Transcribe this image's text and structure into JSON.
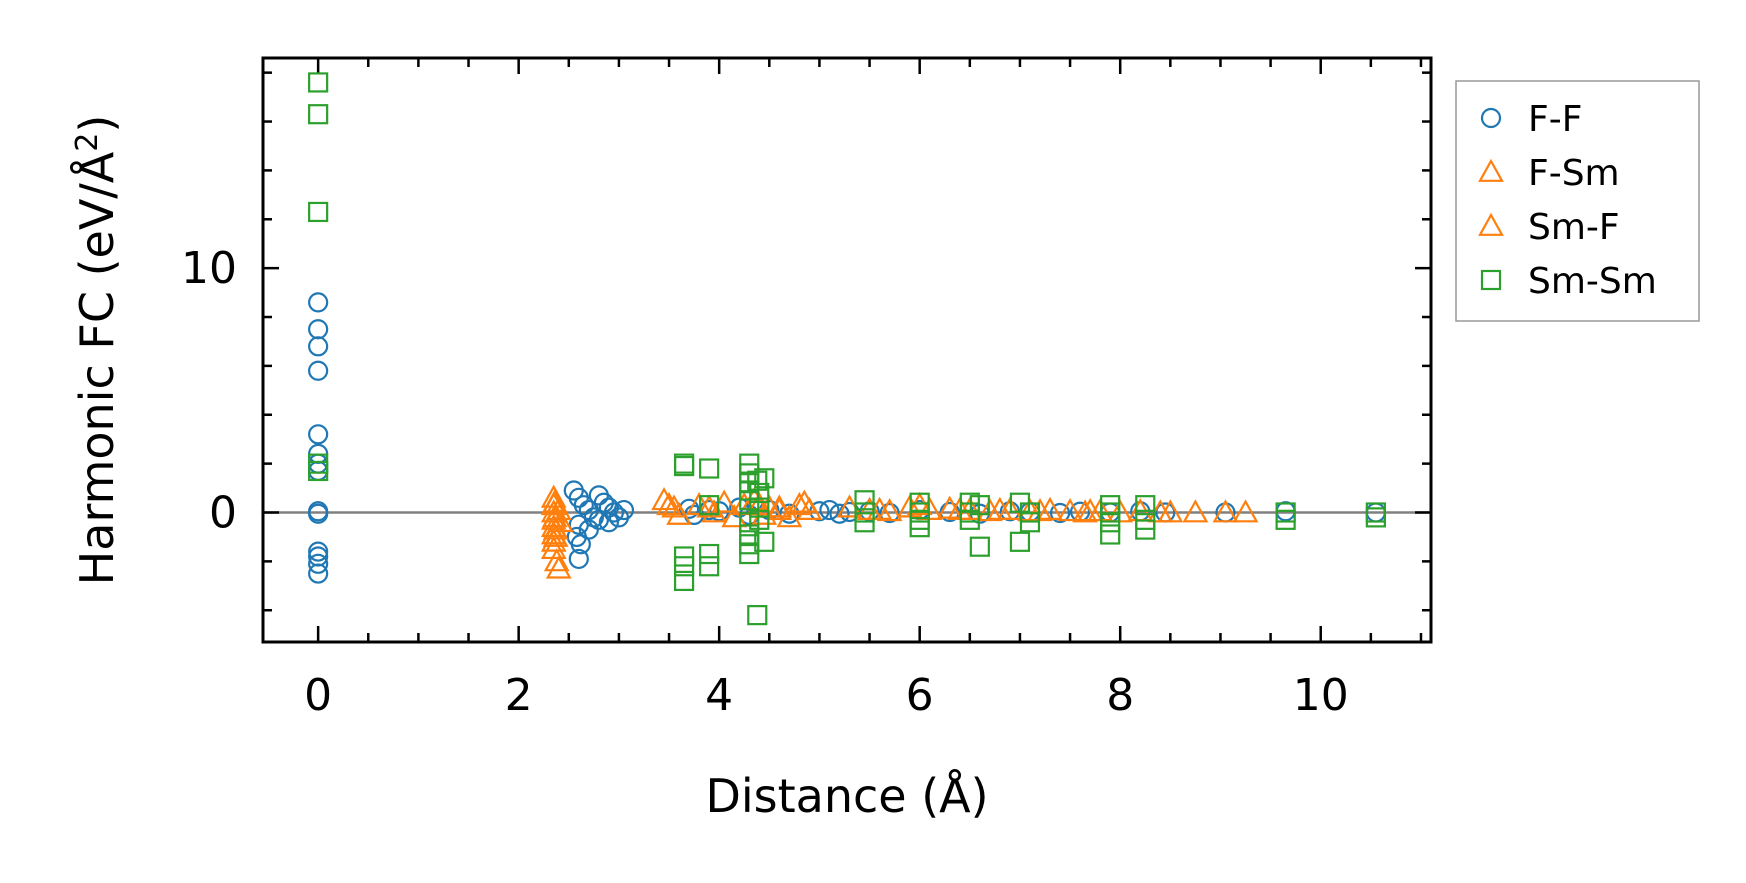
{
  "chart_data": {
    "type": "scatter",
    "xlabel": "Distance (Å)",
    "ylabel_main": "Harmonic FC (eV/Å",
    "ylabel_sup": "2",
    "ylabel_close": ")",
    "xlim": [
      -0.55,
      11.1
    ],
    "ylim": [
      -5.3,
      18.6
    ],
    "xticks_major": [
      0,
      2,
      4,
      6,
      8,
      10
    ],
    "xtick_labels": [
      "0",
      "2",
      "4",
      "6",
      "8",
      "10"
    ],
    "yticks_major": [
      0,
      10
    ],
    "ytick_labels": [
      "0",
      "10"
    ],
    "reference_line_y": 0,
    "grid": false,
    "legend_position": "outside-right-top",
    "series": [
      {
        "name": "F-F",
        "marker": "circle",
        "color": "#1f77b4",
        "points": [
          [
            0,
            8.6
          ],
          [
            0,
            7.5
          ],
          [
            0,
            6.8
          ],
          [
            0,
            5.8
          ],
          [
            0,
            3.2
          ],
          [
            0,
            2.4
          ],
          [
            0,
            2.0
          ],
          [
            0,
            1.7
          ],
          [
            0,
            0.05
          ],
          [
            0,
            -0.05
          ],
          [
            0,
            -1.6
          ],
          [
            0,
            -1.8
          ],
          [
            0,
            -2.1
          ],
          [
            0,
            -2.5
          ],
          [
            2.55,
            0.9
          ],
          [
            2.6,
            0.6
          ],
          [
            2.65,
            0.3
          ],
          [
            2.7,
            0.1
          ],
          [
            2.75,
            -0.2
          ],
          [
            2.6,
            -0.5
          ],
          [
            2.7,
            -0.7
          ],
          [
            2.8,
            -0.3
          ],
          [
            2.85,
            0.4
          ],
          [
            2.9,
            0.2
          ],
          [
            2.95,
            0.0
          ],
          [
            3.0,
            -0.2
          ],
          [
            3.05,
            0.1
          ],
          [
            2.58,
            -1.0
          ],
          [
            2.62,
            -1.3
          ],
          [
            2.6,
            -1.9
          ],
          [
            2.9,
            -0.4
          ],
          [
            2.8,
            0.7
          ],
          [
            3.7,
            0.15
          ],
          [
            3.75,
            -0.1
          ],
          [
            3.9,
            0.1
          ],
          [
            4.0,
            0.05
          ],
          [
            4.2,
            0.2
          ],
          [
            4.3,
            -0.1
          ],
          [
            4.5,
            0.1
          ],
          [
            4.7,
            -0.05
          ],
          [
            5.0,
            0.05
          ],
          [
            5.1,
            0.1
          ],
          [
            5.2,
            -0.05
          ],
          [
            5.3,
            0.02
          ],
          [
            5.5,
            0.05
          ],
          [
            5.7,
            -0.02
          ],
          [
            6.0,
            0.1
          ],
          [
            6.3,
            0.02
          ],
          [
            6.6,
            -0.05
          ],
          [
            6.9,
            0.05
          ],
          [
            7.1,
            0.02
          ],
          [
            7.4,
            -0.02
          ],
          [
            7.6,
            0.03
          ],
          [
            7.9,
            0.0
          ],
          [
            8.2,
            0.05
          ],
          [
            8.45,
            0.0
          ],
          [
            9.05,
            0.0
          ],
          [
            9.65,
            0.05
          ],
          [
            10.55,
            0.0
          ]
        ]
      },
      {
        "name": "F-Sm",
        "marker": "triangle",
        "color": "#ff7f0e",
        "points": [
          [
            2.35,
            0.6
          ],
          [
            2.35,
            0.3
          ],
          [
            2.35,
            0.0
          ],
          [
            2.35,
            -0.3
          ],
          [
            2.35,
            -0.6
          ],
          [
            2.35,
            -0.9
          ],
          [
            2.35,
            -1.2
          ],
          [
            2.35,
            -1.5
          ],
          [
            2.38,
            -2.0
          ],
          [
            2.4,
            -2.3
          ],
          [
            2.4,
            0.1
          ],
          [
            2.42,
            -0.4
          ],
          [
            3.45,
            0.5
          ],
          [
            3.55,
            0.2
          ],
          [
            3.6,
            -0.1
          ],
          [
            3.8,
            0.3
          ],
          [
            3.95,
            0.0
          ],
          [
            4.05,
            0.4
          ],
          [
            4.15,
            -0.2
          ],
          [
            4.25,
            0.3
          ],
          [
            4.35,
            0.5
          ],
          [
            4.45,
            -0.1
          ],
          [
            4.5,
            0.2
          ],
          [
            4.6,
            0.1
          ],
          [
            4.7,
            -0.2
          ],
          [
            4.8,
            0.3
          ],
          [
            4.9,
            0.1
          ],
          [
            5.3,
            0.2
          ],
          [
            5.5,
            0.1
          ],
          [
            5.7,
            0.05
          ],
          [
            5.9,
            0.2
          ],
          [
            6.1,
            0.1
          ],
          [
            6.3,
            0.15
          ],
          [
            6.5,
            0.1
          ],
          [
            6.7,
            0.05
          ],
          [
            6.9,
            0.1
          ],
          [
            7.1,
            0.05
          ],
          [
            7.3,
            0.1
          ],
          [
            7.5,
            0.05
          ],
          [
            7.65,
            0.0
          ],
          [
            7.8,
            0.05
          ],
          [
            8.0,
            0.0
          ],
          [
            8.2,
            0.05
          ],
          [
            8.5,
            0.0
          ],
          [
            8.75,
            0.0
          ],
          [
            9.05,
            0.0
          ],
          [
            9.25,
            0.0
          ]
        ]
      },
      {
        "name": "Sm-F",
        "marker": "triangle",
        "color": "#ff7f0e",
        "points": [
          [
            2.36,
            0.4
          ],
          [
            2.36,
            -0.2
          ],
          [
            2.37,
            -0.7
          ],
          [
            2.37,
            -1.0
          ],
          [
            3.5,
            0.3
          ],
          [
            3.9,
            0.2
          ],
          [
            4.4,
            0.3
          ],
          [
            4.6,
            0.2
          ],
          [
            4.85,
            0.4
          ],
          [
            5.6,
            0.1
          ],
          [
            6.0,
            0.3
          ],
          [
            6.4,
            0.1
          ],
          [
            6.8,
            0.1
          ],
          [
            7.2,
            0.05
          ],
          [
            7.7,
            0.05
          ],
          [
            8.4,
            0.0
          ]
        ]
      },
      {
        "name": "Sm-Sm",
        "marker": "square",
        "color": "#2ca02c",
        "points": [
          [
            0,
            17.6
          ],
          [
            0,
            16.3
          ],
          [
            0,
            12.3
          ],
          [
            0,
            2.0
          ],
          [
            0,
            1.7
          ],
          [
            3.65,
            1.9
          ],
          [
            3.65,
            2.0
          ],
          [
            3.65,
            -1.8
          ],
          [
            3.65,
            -2.2
          ],
          [
            3.65,
            -2.8
          ],
          [
            3.9,
            1.8
          ],
          [
            3.9,
            -1.7
          ],
          [
            3.9,
            -2.2
          ],
          [
            3.9,
            0.3
          ],
          [
            4.3,
            2.0
          ],
          [
            4.3,
            1.6
          ],
          [
            4.3,
            1.2
          ],
          [
            4.3,
            0.9
          ],
          [
            4.3,
            0.5
          ],
          [
            4.3,
            -0.4
          ],
          [
            4.3,
            -0.9
          ],
          [
            4.3,
            -1.3
          ],
          [
            4.3,
            -1.7
          ],
          [
            4.38,
            1.3
          ],
          [
            4.38,
            -4.2
          ],
          [
            4.4,
            0.8
          ],
          [
            4.4,
            0.2
          ],
          [
            4.4,
            -0.3
          ],
          [
            4.45,
            1.4
          ],
          [
            4.45,
            -1.2
          ],
          [
            5.45,
            0.5
          ],
          [
            5.45,
            0.0
          ],
          [
            5.45,
            -0.4
          ],
          [
            6.0,
            0.4
          ],
          [
            6.0,
            0.0
          ],
          [
            6.0,
            -0.3
          ],
          [
            6.0,
            -0.6
          ],
          [
            6.5,
            0.4
          ],
          [
            6.5,
            0.0
          ],
          [
            6.5,
            -0.3
          ],
          [
            6.6,
            -1.4
          ],
          [
            6.6,
            0.3
          ],
          [
            7.0,
            0.4
          ],
          [
            7.0,
            -1.2
          ],
          [
            7.1,
            0.0
          ],
          [
            7.1,
            -0.4
          ],
          [
            7.9,
            0.3
          ],
          [
            7.9,
            0.0
          ],
          [
            7.9,
            -0.4
          ],
          [
            7.9,
            -0.9
          ],
          [
            8.25,
            0.3
          ],
          [
            8.25,
            -0.3
          ],
          [
            8.25,
            -0.7
          ],
          [
            9.65,
            0.0
          ],
          [
            9.65,
            -0.3
          ],
          [
            10.55,
            0.0
          ],
          [
            10.55,
            -0.2
          ]
        ]
      }
    ]
  }
}
